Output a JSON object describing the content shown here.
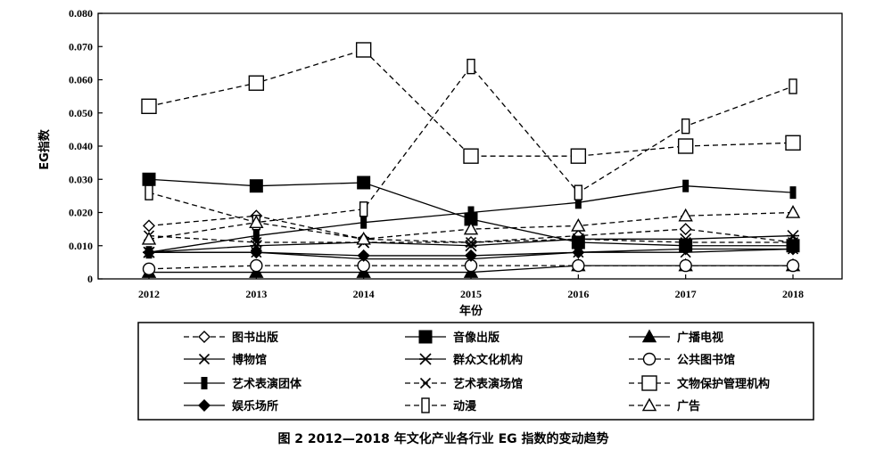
{
  "caption": "图 2   2012—2018 年文化产业各行业 EG 指数的变动趋势",
  "chart_data": {
    "type": "line",
    "xlabel": "年份",
    "ylabel": "EG指数",
    "ylim": [
      0,
      0.08
    ],
    "yticks": [
      "0",
      "0.010",
      "0.020",
      "0.030",
      "0.040",
      "0.050",
      "0.060",
      "0.070",
      "0.080"
    ],
    "x": [
      "2012",
      "2013",
      "2014",
      "2015",
      "2016",
      "2017",
      "2018"
    ],
    "legend_position": "bottom",
    "series": [
      {
        "name": "图书出版",
        "marker": "diamond-open",
        "dash": true,
        "color": "#000000",
        "values": [
          0.016,
          0.019,
          0.012,
          0.011,
          0.013,
          0.015,
          0.011
        ]
      },
      {
        "name": "音像出版",
        "marker": "square-filled",
        "dash": false,
        "color": "#000000",
        "values": [
          0.03,
          0.028,
          0.029,
          0.018,
          0.011,
          0.01,
          0.01
        ]
      },
      {
        "name": "广播电视",
        "marker": "triangle-filled",
        "dash": false,
        "color": "#000000",
        "values": [
          0.002,
          0.002,
          0.002,
          0.002,
          0.004,
          0.004,
          0.004
        ]
      },
      {
        "name": "博物馆",
        "marker": "x",
        "dash": false,
        "color": "#000000",
        "values": [
          0.008,
          0.008,
          0.006,
          0.006,
          0.008,
          0.008,
          0.009
        ]
      },
      {
        "name": "群众文化机构",
        "marker": "asterisk",
        "dash": false,
        "color": "#000000",
        "values": [
          0.008,
          0.01,
          0.011,
          0.01,
          0.012,
          0.012,
          0.013
        ]
      },
      {
        "name": "公共图书馆",
        "marker": "circle-open",
        "dash": true,
        "color": "#000000",
        "values": [
          0.003,
          0.004,
          0.004,
          0.004,
          0.004,
          0.004,
          0.004
        ]
      },
      {
        "name": "艺术表演团体",
        "marker": "bar-filled",
        "dash": false,
        "color": "#000000",
        "values": [
          0.008,
          0.013,
          0.017,
          0.02,
          0.023,
          0.028,
          0.026
        ]
      },
      {
        "name": "艺术表演场馆",
        "marker": "x",
        "dash": true,
        "color": "#000000",
        "values": [
          0.013,
          0.011,
          0.011,
          0.011,
          0.012,
          0.011,
          0.011
        ]
      },
      {
        "name": "文物保护管理机构",
        "marker": "square-open",
        "dash": true,
        "color": "#000000",
        "values": [
          0.052,
          0.059,
          0.069,
          0.037,
          0.037,
          0.04,
          0.041
        ]
      },
      {
        "name": "娱乐场所",
        "marker": "diamond-filled",
        "dash": false,
        "color": "#000000",
        "values": [
          0.008,
          0.008,
          0.007,
          0.007,
          0.008,
          0.009,
          0.009
        ]
      },
      {
        "name": "动漫",
        "marker": "rect-open",
        "dash": true,
        "color": "#000000",
        "values": [
          0.026,
          0.017,
          0.021,
          0.064,
          0.026,
          0.046,
          0.058
        ]
      },
      {
        "name": "广告",
        "marker": "triangle-open",
        "dash": true,
        "color": "#000000",
        "values": [
          0.012,
          0.017,
          0.012,
          0.015,
          0.016,
          0.019,
          0.02
        ]
      }
    ]
  }
}
